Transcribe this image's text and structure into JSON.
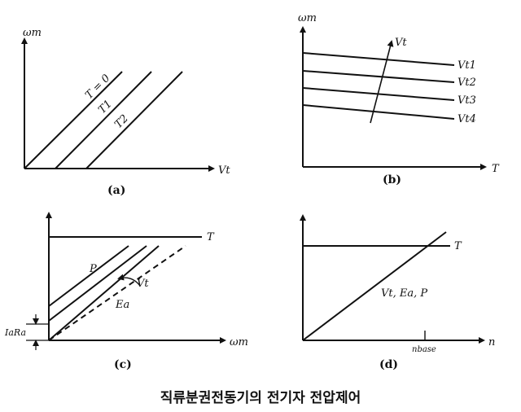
{
  "panels": {
    "a": {
      "label": "(a)",
      "y_axis": "ωm",
      "x_axis": "Vt",
      "curves": [
        "T = 0",
        "T1",
        "T2"
      ]
    },
    "b": {
      "label": "(b)",
      "y_axis": "ωm",
      "x_axis": "T",
      "arrow_label": "Vt",
      "curves": [
        "Vt1",
        "Vt2",
        "Vt3",
        "Vt4"
      ]
    },
    "c": {
      "label": "(c)",
      "x_axis": "ωm",
      "drop_label": "IaRa",
      "line_labels": [
        "T",
        "P",
        "Vt",
        "Ea"
      ]
    },
    "d": {
      "label": "(d)",
      "x_axis": "n",
      "tick_label": "nbase",
      "line_labels": [
        "T",
        "Vt, Ea, P"
      ]
    }
  },
  "caption": "직류분권전동기의 전기자 전압제어"
}
